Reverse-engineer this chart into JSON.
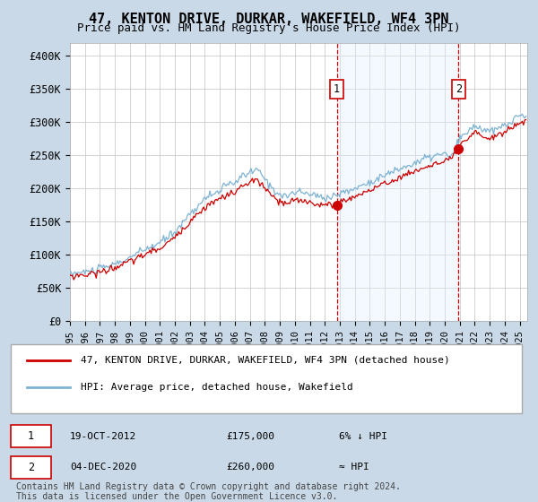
{
  "title": "47, KENTON DRIVE, DURKAR, WAKEFIELD, WF4 3PN",
  "subtitle": "Price paid vs. HM Land Registry's House Price Index (HPI)",
  "background_color": "#c9d9e8",
  "plot_bg_color": "#ffffff",
  "hpi_color": "#7fb3d3",
  "price_color": "#cc0000",
  "vline_color": "#cc0000",
  "shade_color": "#ddeeff",
  "ylim": [
    0,
    420000
  ],
  "yticks": [
    0,
    50000,
    100000,
    150000,
    200000,
    250000,
    300000,
    350000,
    400000
  ],
  "ytick_labels": [
    "£0",
    "£50K",
    "£100K",
    "£150K",
    "£200K",
    "£250K",
    "£300K",
    "£350K",
    "£400K"
  ],
  "legend_label_price": "47, KENTON DRIVE, DURKAR, WAKEFIELD, WF4 3PN (detached house)",
  "legend_label_hpi": "HPI: Average price, detached house, Wakefield",
  "annotation1_label": "1",
  "annotation1_date": "19-OCT-2012",
  "annotation1_price": "£175,000",
  "annotation1_hpi": "6% ↓ HPI",
  "annotation2_label": "2",
  "annotation2_date": "04-DEC-2020",
  "annotation2_price": "£260,000",
  "annotation2_hpi": "≈ HPI",
  "footnote": "Contains HM Land Registry data © Crown copyright and database right 2024.\nThis data is licensed under the Open Government Licence v3.0.",
  "marker1_x": 2012.8,
  "marker1_y": 175000,
  "marker2_x": 2020.92,
  "marker2_y": 260000,
  "xmin": 1995,
  "xmax": 2025.5
}
